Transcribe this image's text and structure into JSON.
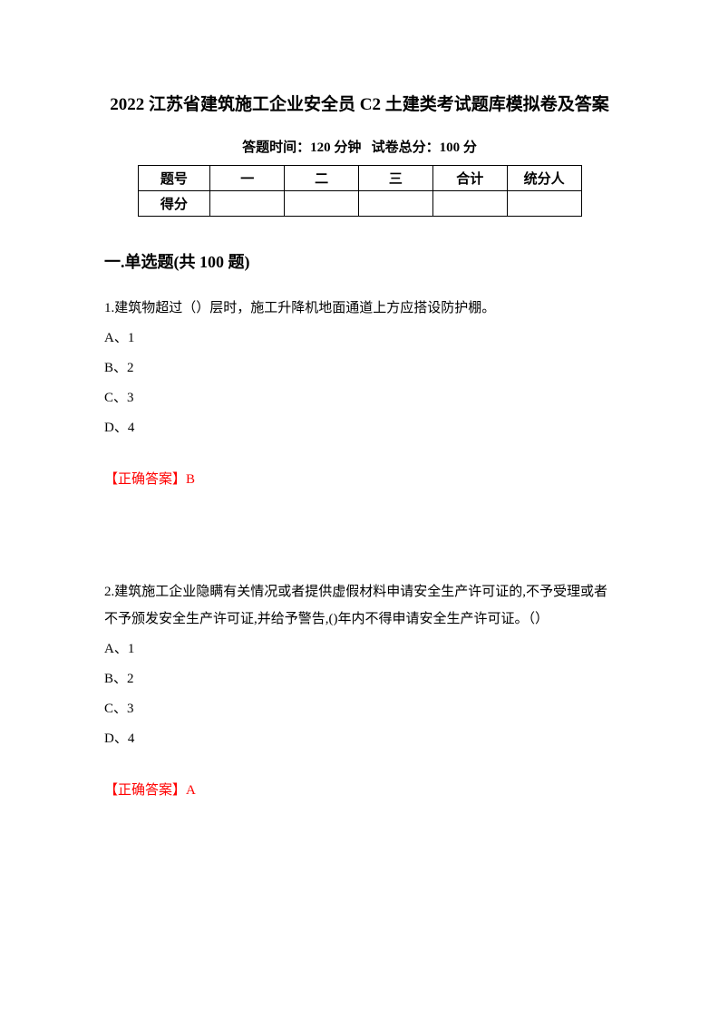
{
  "title": "2022 江苏省建筑施工企业安全员 C2 土建类考试题库模拟卷及答案",
  "subtitle_time_label": "答题时间：",
  "subtitle_time_value": "120 分钟",
  "subtitle_score_label": "试卷总分：",
  "subtitle_score_value": "100 分",
  "table": {
    "header": [
      "题号",
      "一",
      "二",
      "三",
      "合计",
      "统分人"
    ],
    "row_label": "得分"
  },
  "section_title": "一.单选题(共 100 题)",
  "q1": {
    "text": "1.建筑物超过（）层时，施工升降机地面通道上方应搭设防护棚。",
    "opts": [
      "A、1",
      "B、2",
      "C、3",
      "D、4"
    ],
    "answer": "【正确答案】B"
  },
  "q2": {
    "text": "2.建筑施工企业隐瞒有关情况或者提供虚假材料申请安全生产许可证的,不予受理或者不予颁发安全生产许可证,并给予警告,()年内不得申请安全生产许可证。（）",
    "opts": [
      "A、1",
      "B、2",
      "C、3",
      "D、4"
    ],
    "answer": "【正确答案】A"
  },
  "colors": {
    "text": "#000000",
    "answer": "#ff0000",
    "background": "#ffffff",
    "border": "#000000"
  }
}
